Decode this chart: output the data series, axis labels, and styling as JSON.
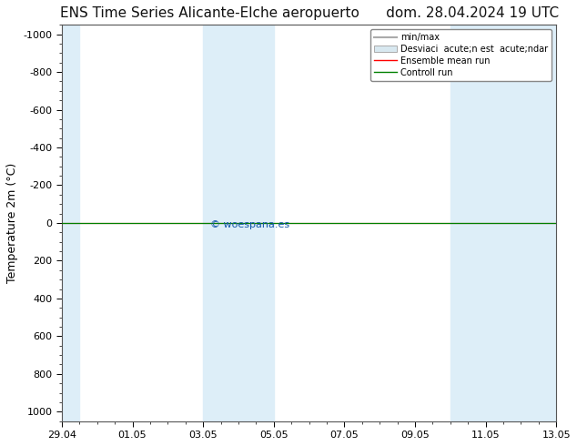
{
  "title_left": "ENS Time Series Alicante-Elche aeropuerto",
  "title_right": "dom. 28.04.2024 19 UTC",
  "ylabel": "Temperature 2m (°C)",
  "watermark": "© woespana.es",
  "x_tick_labels": [
    "29.04",
    "01.05",
    "03.05",
    "05.05",
    "07.05",
    "09.05",
    "11.05",
    "13.05"
  ],
  "x_tick_positions": [
    0,
    2,
    4,
    6,
    8,
    10,
    12,
    14
  ],
  "ylim_top": -1050,
  "ylim_bottom": 1050,
  "yticks": [
    -1000,
    -800,
    -600,
    -400,
    -200,
    0,
    200,
    400,
    600,
    800,
    1000
  ],
  "shaded_bands": [
    [
      0,
      0.5
    ],
    [
      4.0,
      5.0
    ],
    [
      5.0,
      6.0
    ],
    [
      11.0,
      12.0
    ],
    [
      12.0,
      14.0
    ]
  ],
  "shaded_color": "#ddeef8",
  "control_line_y": 0.0,
  "mean_line_y": 0.0,
  "mean_line_color": "#ff0000",
  "control_line_color": "#008000",
  "minmax_line_color": "#aaaaaa",
  "std_band_color": "#d0d0d0",
  "xlim": [
    0,
    14
  ],
  "background_color": "#ffffff",
  "plot_bg_color": "#ffffff",
  "title_fontsize": 11,
  "axis_fontsize": 9,
  "tick_fontsize": 8,
  "legend_label1": "min/max",
  "legend_label2": "Desviaci  acute;n est  acute;ndar",
  "legend_label3": "Ensemble mean run",
  "legend_label4": "Controll run",
  "watermark_color": "#1155aa"
}
